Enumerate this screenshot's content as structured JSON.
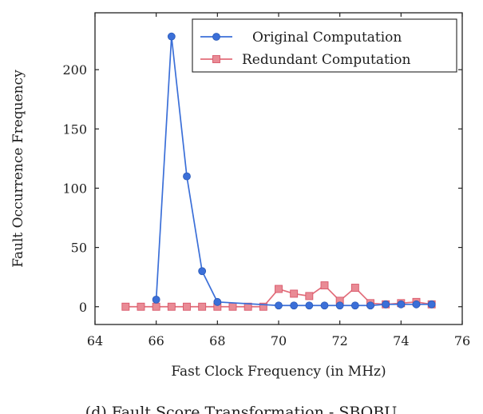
{
  "chart_data": {
    "type": "line",
    "xlabel": "Fast Clock Frequency (in MHz)",
    "ylabel": "Fault Occurrence Frequency",
    "xlim": [
      64,
      76
    ],
    "ylim": [
      -15,
      248
    ],
    "xticks": [
      64,
      66,
      68,
      70,
      72,
      74,
      76
    ],
    "yticks": [
      0,
      50,
      100,
      150,
      200
    ],
    "legend_position": "top-right",
    "grid": false,
    "series": [
      {
        "name": "Original Computation",
        "color": "#3b6fd8",
        "marker": "circle",
        "x": [
          66,
          66.5,
          67,
          67.5,
          68,
          70,
          70.5,
          71,
          71.5,
          72,
          72.5,
          73,
          73.5,
          74,
          74.5,
          75
        ],
        "y": [
          6,
          228,
          110,
          30,
          4,
          1,
          1,
          1,
          1,
          1,
          1,
          1,
          2,
          2,
          2,
          2
        ]
      },
      {
        "name": "Redundant Computation",
        "color": "#e26d7a",
        "marker": "square",
        "x": [
          65,
          65.5,
          66,
          66.5,
          67,
          67.5,
          68,
          68.5,
          69,
          69.5,
          70,
          70.5,
          71,
          71.5,
          72,
          72.5,
          73,
          73.5,
          74,
          74.5,
          75
        ],
        "y": [
          0,
          0,
          0,
          0,
          0,
          0,
          0,
          0,
          0,
          0,
          15,
          11,
          9,
          18,
          5,
          16,
          3,
          2,
          3,
          4,
          2
        ]
      }
    ]
  },
  "caption": "(d) Fault Score Transformation - SBOBU"
}
